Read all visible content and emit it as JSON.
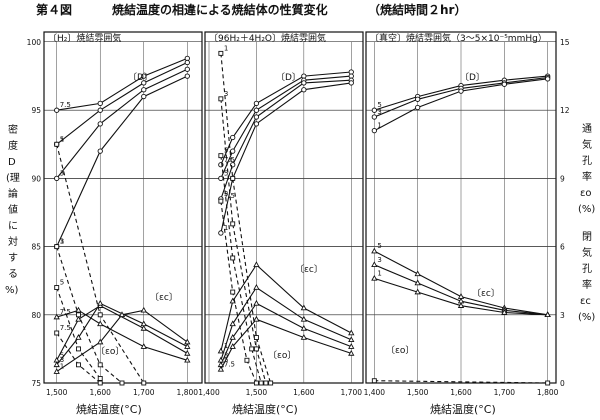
{
  "figure": {
    "number": "第４図",
    "title": "焼結温度の相違による焼結体の性質変化",
    "subtitle": "（焼結時間２hr）",
    "left_axis_label": [
      "密",
      "度",
      "D",
      "(理",
      "論",
      "値",
      "に",
      "対",
      "す",
      "る",
      "%)"
    ],
    "right_axis_label_top": [
      "通",
      "気",
      "孔",
      "率",
      "εo",
      "(%)"
    ],
    "right_axis_label_bottom": [
      "閉",
      "気",
      "孔",
      "率",
      "εc",
      "(%)"
    ]
  },
  "chart_data": [
    {
      "type": "line",
      "title": "〔H₂〕焼結雰囲気",
      "xlabel": "焼結温度(°C)",
      "xlim": [
        1480,
        1820
      ],
      "x_ticks": [
        1500,
        1600,
        1700,
        1800
      ],
      "ylabel": "密度D(理論値に対する%)",
      "ylim": [
        75,
        100
      ],
      "y_ticks": [
        75,
        80,
        85,
        90,
        95,
        100
      ],
      "y2label": "通気孔率εo(%) / 閉気孔率εc(%)",
      "y2lim": [
        0,
        15
      ],
      "y2_ticks": [
        0,
        3,
        6,
        9,
        12,
        15
      ],
      "annotations": [
        "〔D〕",
        "〔εc〕",
        "〔εo〕"
      ],
      "series": [
        {
          "name": "7.5",
          "group": "D",
          "x": [
            1500,
            1600,
            1700,
            1800
          ],
          "y": [
            95.0,
            95.5,
            97.5,
            98.8
          ]
        },
        {
          "name": "5",
          "group": "D",
          "x": [
            1500,
            1600,
            1700,
            1800
          ],
          "y": [
            92.5,
            95.0,
            97.0,
            98.5
          ]
        },
        {
          "name": "3",
          "group": "D",
          "x": [
            1500,
            1600,
            1700,
            1800
          ],
          "y": [
            90.0,
            94.0,
            96.5,
            98.0
          ]
        },
        {
          "name": "1",
          "group": "D",
          "x": [
            1500,
            1600,
            1700,
            1800
          ],
          "y": [
            85.0,
            92.0,
            96.0,
            97.5
          ]
        },
        {
          "name": "7.5",
          "group": "εc",
          "x": [
            1500,
            1550,
            1600,
            1700,
            1800
          ],
          "y": [
            2.9,
            3.2,
            2.6,
            1.6,
            1.0
          ]
        },
        {
          "name": "5",
          "group": "εc",
          "x": [
            1500,
            1550,
            1600,
            1700,
            1800
          ],
          "y": [
            1.0,
            2.8,
            3.4,
            2.4,
            1.3
          ]
        },
        {
          "name": "3",
          "group": "εc",
          "x": [
            1500,
            1550,
            1600,
            1700,
            1800
          ],
          "y": [
            0.8,
            2.0,
            3.5,
            2.6,
            1.6
          ]
        },
        {
          "name": "1",
          "group": "εc",
          "x": [
            1500,
            1600,
            1650,
            1700,
            1800
          ],
          "y": [
            0.5,
            1.8,
            3.0,
            3.2,
            1.8
          ]
        },
        {
          "name": "7.5",
          "group": "εo",
          "x": [
            1500,
            1550,
            1600
          ],
          "y": [
            2.2,
            0.8,
            0.0
          ]
        },
        {
          "name": "5",
          "group": "εo",
          "x": [
            1500,
            1550,
            1600
          ],
          "y": [
            4.2,
            1.5,
            0.2
          ]
        },
        {
          "name": "3",
          "group": "εo",
          "x": [
            1500,
            1550,
            1600,
            1650
          ],
          "y": [
            6.0,
            3.0,
            0.8,
            0.0
          ]
        },
        {
          "name": "1",
          "group": "εo",
          "x": [
            1500,
            1600,
            1700
          ],
          "y": [
            10.5,
            3.0,
            0.0
          ]
        }
      ]
    },
    {
      "type": "line",
      "title": "〔96H₂＋4H₂O〕焼結雰囲気",
      "xlabel": "焼結温度(°C)",
      "xlim": [
        1400,
        1710
      ],
      "x_ticks": [
        1400,
        1500,
        1600,
        1700
      ],
      "ylim": [
        75,
        100
      ],
      "y2lim": [
        0,
        15
      ],
      "annotations": [
        "〔D〕",
        "〔εc〕",
        "〔εo〕"
      ],
      "series": [
        {
          "name": "7.5",
          "group": "D",
          "x": [
            1425,
            1450,
            1500,
            1600,
            1700
          ],
          "y": [
            91.0,
            93.0,
            95.5,
            97.5,
            97.8
          ]
        },
        {
          "name": "5",
          "group": "D",
          "x": [
            1425,
            1450,
            1500,
            1600,
            1700
          ],
          "y": [
            90.0,
            92.0,
            95.0,
            97.2,
            97.5
          ]
        },
        {
          "name": "3",
          "group": "D",
          "x": [
            1425,
            1450,
            1500,
            1600,
            1700
          ],
          "y": [
            88.5,
            91.0,
            94.5,
            97.0,
            97.2
          ]
        },
        {
          "name": "1",
          "group": "D",
          "x": [
            1425,
            1450,
            1500,
            1600,
            1700
          ],
          "y": [
            86.0,
            90.0,
            94.0,
            96.5,
            97.0
          ]
        },
        {
          "name": "7.5",
          "group": "εc",
          "x": [
            1425,
            1450,
            1500,
            1600,
            1700
          ],
          "y": [
            0.6,
            1.6,
            2.8,
            2.0,
            1.3
          ]
        },
        {
          "name": "5",
          "group": "εc",
          "x": [
            1425,
            1450,
            1500,
            1600,
            1700
          ],
          "y": [
            0.8,
            2.0,
            3.5,
            2.4,
            1.6
          ]
        },
        {
          "name": "3",
          "group": "εc",
          "x": [
            1425,
            1450,
            1500,
            1600,
            1700
          ],
          "y": [
            1.0,
            2.6,
            4.2,
            2.8,
            1.9
          ]
        },
        {
          "name": "1",
          "group": "εc",
          "x": [
            1425,
            1450,
            1500,
            1600,
            1700
          ],
          "y": [
            1.4,
            3.6,
            5.2,
            3.3,
            2.2
          ]
        },
        {
          "name": "7.5",
          "group": "εo",
          "x": [
            1425,
            1450,
            1480,
            1500
          ],
          "y": [
            8.0,
            4.0,
            1.0,
            0.0
          ]
        },
        {
          "name": "5",
          "group": "εo",
          "x": [
            1425,
            1450,
            1490,
            1510
          ],
          "y": [
            10.0,
            5.5,
            1.5,
            0.0
          ]
        },
        {
          "name": "3",
          "group": "εo",
          "x": [
            1425,
            1450,
            1500,
            1520
          ],
          "y": [
            12.5,
            7.0,
            1.5,
            0.0
          ]
        },
        {
          "name": "1",
          "group": "εo",
          "x": [
            1425,
            1450,
            1500,
            1530
          ],
          "y": [
            14.5,
            9.0,
            2.0,
            0.0
          ]
        }
      ]
    },
    {
      "type": "line",
      "title": "〔真空〕焼結雰囲気（3～5×10⁻⁵mmHg）",
      "xlabel": "焼結温度(°C)",
      "xlim": [
        1390,
        1810
      ],
      "x_ticks": [
        1400,
        1500,
        1600,
        1700,
        1800
      ],
      "ylim": [
        75,
        100
      ],
      "y2lim": [
        0,
        15
      ],
      "y2_ticks": [
        0,
        3,
        6,
        9,
        12,
        15
      ],
      "annotations": [
        "〔D〕",
        "〔εc〕",
        "〔εo〕"
      ],
      "series": [
        {
          "name": "5",
          "group": "D",
          "x": [
            1400,
            1500,
            1600,
            1700,
            1800
          ],
          "y": [
            95.0,
            96.0,
            96.8,
            97.2,
            97.5
          ]
        },
        {
          "name": "3",
          "group": "D",
          "x": [
            1400,
            1500,
            1600,
            1700,
            1800
          ],
          "y": [
            94.5,
            95.8,
            96.6,
            97.0,
            97.4
          ]
        },
        {
          "name": "1",
          "group": "D",
          "x": [
            1400,
            1500,
            1600,
            1700,
            1800
          ],
          "y": [
            93.5,
            95.2,
            96.4,
            96.9,
            97.3
          ]
        },
        {
          "name": "5",
          "group": "εc",
          "x": [
            1400,
            1500,
            1600,
            1700,
            1800
          ],
          "y": [
            5.8,
            4.8,
            3.8,
            3.3,
            3.0
          ]
        },
        {
          "name": "3",
          "group": "εc",
          "x": [
            1400,
            1500,
            1600,
            1700,
            1800
          ],
          "y": [
            5.2,
            4.4,
            3.6,
            3.2,
            3.0
          ]
        },
        {
          "name": "1",
          "group": "εc",
          "x": [
            1400,
            1500,
            1600,
            1700,
            1800
          ],
          "y": [
            4.6,
            4.0,
            3.4,
            3.1,
            3.0
          ]
        },
        {
          "name": "",
          "group": "εo",
          "x": [
            1400,
            1800
          ],
          "y": [
            0.1,
            0.0
          ]
        }
      ]
    }
  ]
}
